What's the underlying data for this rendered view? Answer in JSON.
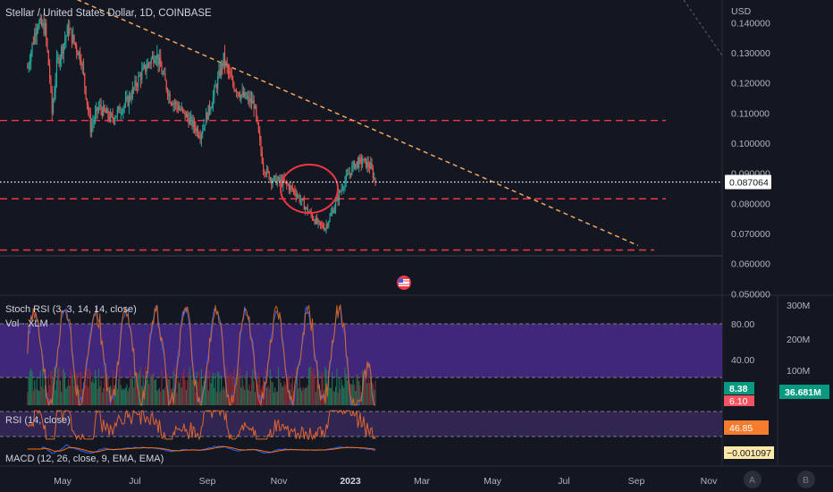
{
  "header": {
    "title": "Stellar / United States Dollar, 1D, COINBASE"
  },
  "price_axis": {
    "unit": "USD",
    "ticks": [
      "0.140000",
      "0.130000",
      "0.120000",
      "0.110000",
      "0.100000",
      "0.090000",
      "0.080000",
      "0.070000",
      "0.060000",
      "0.050000"
    ],
    "current_price": "0.087064"
  },
  "time_axis": {
    "ticks": [
      "May",
      "Jul",
      "Sep",
      "Nov",
      "2023",
      "Mar",
      "May",
      "Jul",
      "Sep",
      "Nov"
    ]
  },
  "indicators": {
    "stoch_rsi": {
      "label": "Stoch RSI (3, 3, 14, 14, close)",
      "upper_level": "80.00",
      "lower_level": "40.00",
      "k_value": "8.38",
      "d_value": "6.10"
    },
    "volume": {
      "label": "Vol · XLM",
      "ticks": [
        "300M",
        "200M",
        "100M"
      ],
      "value": "36.681M"
    },
    "rsi": {
      "label": "RSI (14, close)",
      "value": "46.85"
    },
    "macd": {
      "label": "MACD (12, 26, close, 9, EMA, EMA)",
      "value": "−0.001097"
    }
  },
  "corner_buttons": [
    "A",
    "B"
  ],
  "colors": {
    "background": "#131722",
    "up": "#26a69a",
    "down": "#ef5350",
    "support_line": "#f23645",
    "trend_line": "#f7a35c",
    "stoch_fill": "#4a2a8a",
    "rsi_fill": "#3a2a5e"
  },
  "chart_data": {
    "type": "candlestick",
    "title": "Stellar / United States Dollar, 1D, COINBASE",
    "y_unit": "USD",
    "ylim": [
      0.05,
      0.148
    ],
    "x_range": [
      "2022-04",
      "2023-11"
    ],
    "close_path": [
      {
        "x": "2022-04-20",
        "y": 0.125
      },
      {
        "x": "2022-04-28",
        "y": 0.14
      },
      {
        "x": "2022-05-05",
        "y": 0.138
      },
      {
        "x": "2022-05-09",
        "y": 0.122
      },
      {
        "x": "2022-05-11",
        "y": 0.11
      },
      {
        "x": "2022-05-15",
        "y": 0.126
      },
      {
        "x": "2022-05-25",
        "y": 0.138
      },
      {
        "x": "2022-06-05",
        "y": 0.128
      },
      {
        "x": "2022-06-13",
        "y": 0.105
      },
      {
        "x": "2022-06-20",
        "y": 0.112
      },
      {
        "x": "2022-07-01",
        "y": 0.108
      },
      {
        "x": "2022-07-15",
        "y": 0.114
      },
      {
        "x": "2022-07-25",
        "y": 0.122
      },
      {
        "x": "2022-08-08",
        "y": 0.13
      },
      {
        "x": "2022-08-20",
        "y": 0.115
      },
      {
        "x": "2022-09-05",
        "y": 0.108
      },
      {
        "x": "2022-09-15",
        "y": 0.103
      },
      {
        "x": "2022-09-25",
        "y": 0.114
      },
      {
        "x": "2022-10-05",
        "y": 0.128
      },
      {
        "x": "2022-10-12",
        "y": 0.12
      },
      {
        "x": "2022-10-20",
        "y": 0.116
      },
      {
        "x": "2022-10-31",
        "y": 0.113
      },
      {
        "x": "2022-11-08",
        "y": 0.092
      },
      {
        "x": "2022-11-15",
        "y": 0.088
      },
      {
        "x": "2022-11-25",
        "y": 0.087
      },
      {
        "x": "2022-12-05",
        "y": 0.084
      },
      {
        "x": "2022-12-15",
        "y": 0.078
      },
      {
        "x": "2022-12-25",
        "y": 0.073
      },
      {
        "x": "2022-12-31",
        "y": 0.072
      },
      {
        "x": "2023-01-08",
        "y": 0.079
      },
      {
        "x": "2023-01-15",
        "y": 0.086
      },
      {
        "x": "2023-01-25",
        "y": 0.093
      },
      {
        "x": "2023-02-01",
        "y": 0.094
      },
      {
        "x": "2023-02-08",
        "y": 0.092
      },
      {
        "x": "2023-02-12",
        "y": 0.087
      }
    ],
    "horizontal_levels": [
      0.1075,
      0.0815,
      0.0645
    ],
    "trend_line": [
      {
        "x": "2022-05-01",
        "y": 0.153
      },
      {
        "x": "2023-09-25",
        "y": 0.066
      }
    ],
    "current_price": 0.087064
  }
}
